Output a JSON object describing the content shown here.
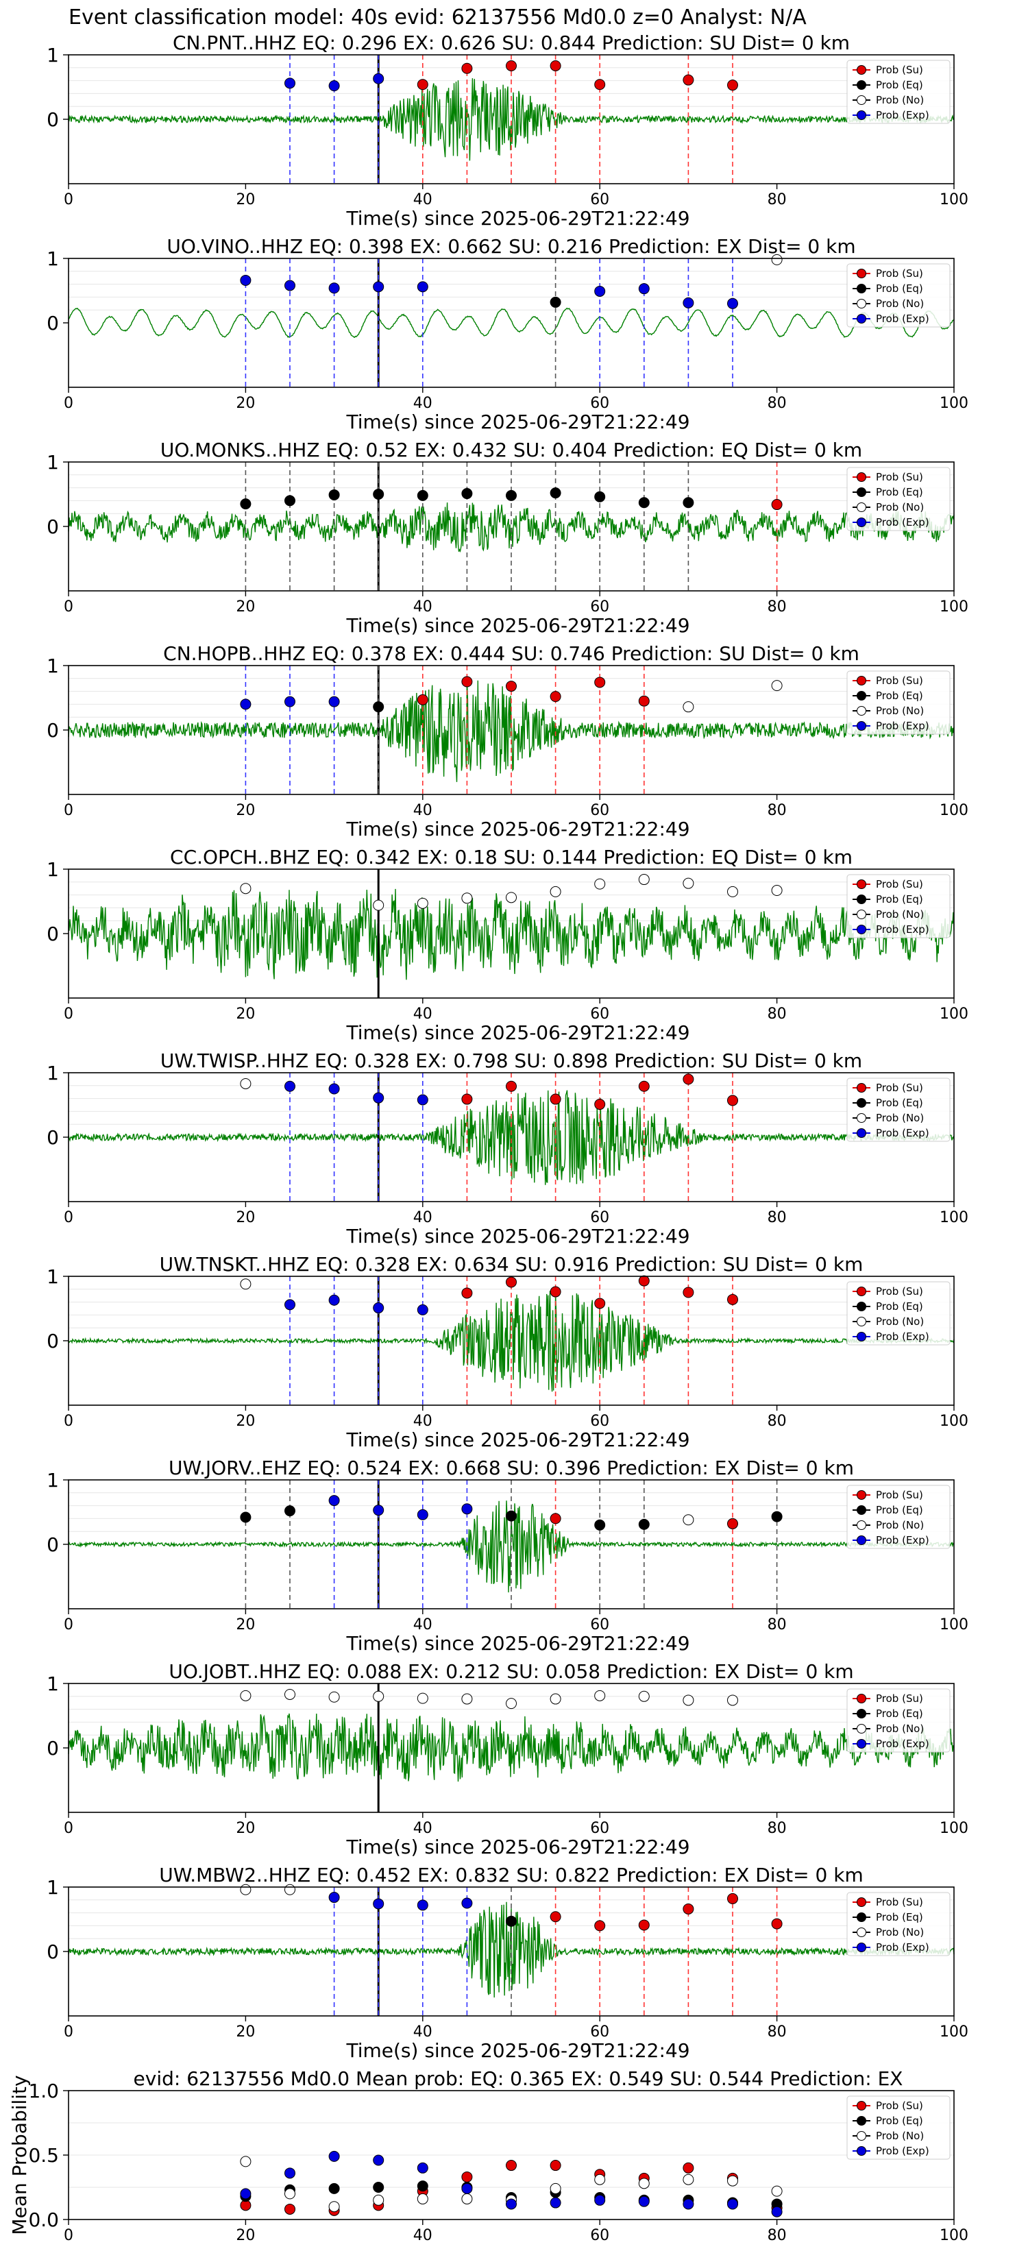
{
  "suptitle": "Event classification model: 40s evid: 62137556 Md0.0 z=0 Analyst: N/A",
  "colors": {
    "su": "#e00000",
    "eq": "#000000",
    "no": "#ffffff",
    "exp": "#0000dd",
    "waveform": "#008000",
    "vline_su": "#ff3333",
    "vline_eq": "#555555",
    "vline_exp": "#3333ff",
    "event_line": "#000000"
  },
  "legend_labels": [
    "Prob (Su)",
    "Prob (Eq)",
    "Prob (No)",
    "Prob (Exp)"
  ],
  "chart_data": [
    {
      "type": "scatter",
      "title": "CN.PNT..HHZ  EQ: 0.296  EX: 0.626  SU: 0.844   Prediction: SU    Dist= 0 km",
      "xlabel": "Time(s) since 2025-06-29T21:22:49",
      "xlim": [
        0,
        100
      ],
      "ylim": [
        -1,
        1
      ],
      "xticks": [
        0,
        20,
        40,
        60,
        80,
        100
      ],
      "yticks": [
        0,
        1
      ],
      "event_time": 35,
      "legend": "upper-right",
      "points": [
        {
          "x": 25,
          "y": 0.56,
          "class": "exp"
        },
        {
          "x": 30,
          "y": 0.52,
          "class": "exp"
        },
        {
          "x": 35,
          "y": 0.63,
          "class": "exp"
        },
        {
          "x": 40,
          "y": 0.54,
          "class": "su"
        },
        {
          "x": 45,
          "y": 0.79,
          "class": "su"
        },
        {
          "x": 50,
          "y": 0.83,
          "class": "su"
        },
        {
          "x": 55,
          "y": 0.83,
          "class": "su"
        },
        {
          "x": 60,
          "y": 0.54,
          "class": "su"
        },
        {
          "x": 70,
          "y": 0.61,
          "class": "su"
        },
        {
          "x": 75,
          "y": 0.53,
          "class": "su"
        }
      ],
      "waveform": {
        "style": "burst",
        "amp": 0.75,
        "start": 35,
        "end": 65,
        "noise": 0.05,
        "seed": 1
      }
    },
    {
      "type": "scatter",
      "title": "UO.VINO..HHZ   EQ: 0.398  EX: 0.662  SU: 0.216   Prediction: EX    Dist= 0 km",
      "xlabel": "Time(s) since 2025-06-29T21:22:49",
      "xlim": [
        0,
        100
      ],
      "ylim": [
        -1,
        1
      ],
      "xticks": [
        0,
        20,
        40,
        60,
        80,
        100
      ],
      "yticks": [
        0,
        1
      ],
      "event_time": 35,
      "legend": "upper-right",
      "points": [
        {
          "x": 20,
          "y": 0.66,
          "class": "exp"
        },
        {
          "x": 25,
          "y": 0.58,
          "class": "exp"
        },
        {
          "x": 30,
          "y": 0.54,
          "class": "exp"
        },
        {
          "x": 35,
          "y": 0.56,
          "class": "exp"
        },
        {
          "x": 40,
          "y": 0.56,
          "class": "exp"
        },
        {
          "x": 55,
          "y": 0.32,
          "class": "eq"
        },
        {
          "x": 60,
          "y": 0.49,
          "class": "exp"
        },
        {
          "x": 65,
          "y": 0.53,
          "class": "exp"
        },
        {
          "x": 70,
          "y": 0.31,
          "class": "exp"
        },
        {
          "x": 75,
          "y": 0.3,
          "class": "exp"
        },
        {
          "x": 80,
          "y": 0.98,
          "class": "no"
        }
      ],
      "waveform": {
        "style": "smooth",
        "amp": 0.22,
        "start": 0,
        "end": 100,
        "noise": 0.02,
        "seed": 2
      }
    },
    {
      "type": "scatter",
      "title": "UO.MONKS..HHZ   EQ: 0.52  EX: 0.432  SU: 0.404   Prediction: EQ    Dist= 0 km",
      "xlabel": "Time(s) since 2025-06-29T21:22:49",
      "xlim": [
        0,
        100
      ],
      "ylim": [
        -1,
        1
      ],
      "xticks": [
        0,
        20,
        40,
        60,
        80,
        100
      ],
      "yticks": [
        0,
        1
      ],
      "event_time": 35,
      "legend": "upper-right",
      "points": [
        {
          "x": 20,
          "y": 0.35,
          "class": "eq"
        },
        {
          "x": 25,
          "y": 0.4,
          "class": "eq"
        },
        {
          "x": 30,
          "y": 0.49,
          "class": "eq"
        },
        {
          "x": 35,
          "y": 0.5,
          "class": "eq"
        },
        {
          "x": 40,
          "y": 0.48,
          "class": "eq"
        },
        {
          "x": 45,
          "y": 0.51,
          "class": "eq"
        },
        {
          "x": 50,
          "y": 0.48,
          "class": "eq"
        },
        {
          "x": 55,
          "y": 0.52,
          "class": "eq"
        },
        {
          "x": 60,
          "y": 0.46,
          "class": "eq"
        },
        {
          "x": 65,
          "y": 0.37,
          "class": "eq"
        },
        {
          "x": 70,
          "y": 0.37,
          "class": "eq"
        },
        {
          "x": 80,
          "y": 0.34,
          "class": "su"
        }
      ],
      "waveform": {
        "style": "noisy",
        "amp": 0.2,
        "start": 35,
        "end": 65,
        "noise": 0.14,
        "seed": 3
      }
    },
    {
      "type": "scatter",
      "title": "CN.HOPB..HHZ   EQ: 0.378  EX: 0.444  SU: 0.746   Prediction: SU    Dist= 0 km",
      "xlabel": "Time(s) since 2025-06-29T21:22:49",
      "xlim": [
        0,
        100
      ],
      "ylim": [
        -1,
        1
      ],
      "xticks": [
        0,
        20,
        40,
        60,
        80,
        100
      ],
      "yticks": [
        0,
        1
      ],
      "event_time": 35,
      "legend": "upper-right",
      "points": [
        {
          "x": 20,
          "y": 0.4,
          "class": "exp"
        },
        {
          "x": 25,
          "y": 0.44,
          "class": "exp"
        },
        {
          "x": 30,
          "y": 0.44,
          "class": "exp"
        },
        {
          "x": 35,
          "y": 0.36,
          "class": "eq"
        },
        {
          "x": 40,
          "y": 0.47,
          "class": "su"
        },
        {
          "x": 45,
          "y": 0.75,
          "class": "su"
        },
        {
          "x": 50,
          "y": 0.68,
          "class": "su"
        },
        {
          "x": 55,
          "y": 0.52,
          "class": "su"
        },
        {
          "x": 60,
          "y": 0.74,
          "class": "su"
        },
        {
          "x": 65,
          "y": 0.45,
          "class": "su"
        },
        {
          "x": 70,
          "y": 0.36,
          "class": "no"
        },
        {
          "x": 80,
          "y": 0.69,
          "class": "no"
        }
      ],
      "waveform": {
        "style": "burst",
        "amp": 0.85,
        "start": 35,
        "end": 65,
        "noise": 0.12,
        "seed": 4
      }
    },
    {
      "type": "scatter",
      "title": "CC.OPCH..BHZ   EQ: 0.342  EX: 0.18  SU: 0.144   Prediction: EQ    Dist= 0 km",
      "xlabel": "Time(s) since 2025-06-29T21:22:49",
      "xlim": [
        0,
        100
      ],
      "ylim": [
        -1,
        1
      ],
      "xticks": [
        0,
        20,
        40,
        60,
        80,
        100
      ],
      "yticks": [
        0,
        1
      ],
      "event_time": 35,
      "legend": "upper-right",
      "points": [
        {
          "x": 20,
          "y": 0.7,
          "class": "no"
        },
        {
          "x": 35,
          "y": 0.44,
          "class": "no"
        },
        {
          "x": 40,
          "y": 0.47,
          "class": "no"
        },
        {
          "x": 45,
          "y": 0.55,
          "class": "no"
        },
        {
          "x": 50,
          "y": 0.56,
          "class": "no"
        },
        {
          "x": 55,
          "y": 0.65,
          "class": "no"
        },
        {
          "x": 60,
          "y": 0.77,
          "class": "no"
        },
        {
          "x": 65,
          "y": 0.84,
          "class": "no"
        },
        {
          "x": 70,
          "y": 0.78,
          "class": "no"
        },
        {
          "x": 75,
          "y": 0.65,
          "class": "no"
        },
        {
          "x": 80,
          "y": 0.67,
          "class": "no"
        }
      ],
      "waveform": {
        "style": "noisy",
        "amp": 0.35,
        "start": 0,
        "end": 100,
        "noise": 0.25,
        "seed": 5
      }
    },
    {
      "type": "scatter",
      "title": "UW.TWISP..HHZ   EQ: 0.328  EX: 0.798  SU: 0.898   Prediction: SU    Dist= 0 km",
      "xlabel": "Time(s) since 2025-06-29T21:22:49",
      "xlim": [
        0,
        100
      ],
      "ylim": [
        -1,
        1
      ],
      "xticks": [
        0,
        20,
        40,
        60,
        80,
        100
      ],
      "yticks": [
        0,
        1
      ],
      "event_time": 35,
      "legend": "upper-right",
      "points": [
        {
          "x": 20,
          "y": 0.83,
          "class": "no"
        },
        {
          "x": 25,
          "y": 0.79,
          "class": "exp"
        },
        {
          "x": 30,
          "y": 0.75,
          "class": "exp"
        },
        {
          "x": 35,
          "y": 0.61,
          "class": "exp"
        },
        {
          "x": 40,
          "y": 0.58,
          "class": "exp"
        },
        {
          "x": 45,
          "y": 0.59,
          "class": "su"
        },
        {
          "x": 50,
          "y": 0.79,
          "class": "su"
        },
        {
          "x": 55,
          "y": 0.59,
          "class": "su"
        },
        {
          "x": 60,
          "y": 0.51,
          "class": "su"
        },
        {
          "x": 65,
          "y": 0.79,
          "class": "su"
        },
        {
          "x": 70,
          "y": 0.9,
          "class": "su"
        },
        {
          "x": 75,
          "y": 0.57,
          "class": "su"
        }
      ],
      "waveform": {
        "style": "burst",
        "amp": 0.85,
        "start": 40,
        "end": 85,
        "noise": 0.05,
        "seed": 6
      }
    },
    {
      "type": "scatter",
      "title": "UW.TNSKT..HHZ   EQ: 0.328  EX: 0.634  SU: 0.916   Prediction: SU    Dist= 0 km",
      "xlabel": "Time(s) since 2025-06-29T21:22:49",
      "xlim": [
        0,
        100
      ],
      "ylim": [
        -1,
        1
      ],
      "xticks": [
        0,
        20,
        40,
        60,
        80,
        100
      ],
      "yticks": [
        0,
        1
      ],
      "event_time": 35,
      "legend": "upper-right",
      "points": [
        {
          "x": 20,
          "y": 0.88,
          "class": "no"
        },
        {
          "x": 25,
          "y": 0.56,
          "class": "exp"
        },
        {
          "x": 30,
          "y": 0.63,
          "class": "exp"
        },
        {
          "x": 35,
          "y": 0.51,
          "class": "exp"
        },
        {
          "x": 40,
          "y": 0.48,
          "class": "exp"
        },
        {
          "x": 45,
          "y": 0.74,
          "class": "su"
        },
        {
          "x": 50,
          "y": 0.91,
          "class": "su"
        },
        {
          "x": 55,
          "y": 0.76,
          "class": "su"
        },
        {
          "x": 60,
          "y": 0.58,
          "class": "su"
        },
        {
          "x": 65,
          "y": 0.93,
          "class": "su"
        },
        {
          "x": 70,
          "y": 0.75,
          "class": "su"
        },
        {
          "x": 75,
          "y": 0.64,
          "class": "su"
        }
      ],
      "waveform": {
        "style": "burst",
        "amp": 0.95,
        "start": 41,
        "end": 80,
        "noise": 0.03,
        "seed": 7
      }
    },
    {
      "type": "scatter",
      "title": "UW.JORV..EHZ   EQ: 0.524  EX: 0.668  SU: 0.396   Prediction: EX    Dist= 0 km",
      "xlabel": "Time(s) since 2025-06-29T21:22:49",
      "xlim": [
        0,
        100
      ],
      "ylim": [
        -1,
        1
      ],
      "xticks": [
        0,
        20,
        40,
        60,
        80,
        100
      ],
      "yticks": [
        0,
        1
      ],
      "event_time": 35,
      "legend": "upper-right",
      "points": [
        {
          "x": 20,
          "y": 0.42,
          "class": "eq"
        },
        {
          "x": 25,
          "y": 0.52,
          "class": "eq"
        },
        {
          "x": 30,
          "y": 0.68,
          "class": "exp"
        },
        {
          "x": 35,
          "y": 0.53,
          "class": "exp"
        },
        {
          "x": 40,
          "y": 0.46,
          "class": "exp"
        },
        {
          "x": 45,
          "y": 0.55,
          "class": "exp"
        },
        {
          "x": 50,
          "y": 0.44,
          "class": "eq"
        },
        {
          "x": 55,
          "y": 0.4,
          "class": "su"
        },
        {
          "x": 60,
          "y": 0.3,
          "class": "eq"
        },
        {
          "x": 65,
          "y": 0.31,
          "class": "eq"
        },
        {
          "x": 70,
          "y": 0.38,
          "class": "no"
        },
        {
          "x": 75,
          "y": 0.32,
          "class": "su"
        },
        {
          "x": 80,
          "y": 0.43,
          "class": "eq"
        }
      ],
      "waveform": {
        "style": "burst",
        "amp": 0.9,
        "start": 44,
        "end": 62,
        "noise": 0.03,
        "seed": 8
      }
    },
    {
      "type": "scatter",
      "title": "UO.JOBT..HHZ   EQ: 0.088  EX: 0.212  SU: 0.058   Prediction: EX    Dist= 0 km",
      "xlabel": "Time(s) since 2025-06-29T21:22:49",
      "xlim": [
        0,
        100
      ],
      "ylim": [
        -1,
        1
      ],
      "xticks": [
        0,
        20,
        40,
        60,
        80,
        100
      ],
      "yticks": [
        0,
        1
      ],
      "event_time": 35,
      "legend": "upper-right",
      "points": [
        {
          "x": 20,
          "y": 0.81,
          "class": "no"
        },
        {
          "x": 25,
          "y": 0.83,
          "class": "no"
        },
        {
          "x": 30,
          "y": 0.79,
          "class": "no"
        },
        {
          "x": 35,
          "y": 0.8,
          "class": "no"
        },
        {
          "x": 40,
          "y": 0.77,
          "class": "no"
        },
        {
          "x": 45,
          "y": 0.76,
          "class": "no"
        },
        {
          "x": 50,
          "y": 0.69,
          "class": "no"
        },
        {
          "x": 55,
          "y": 0.76,
          "class": "no"
        },
        {
          "x": 60,
          "y": 0.81,
          "class": "no"
        },
        {
          "x": 65,
          "y": 0.8,
          "class": "no"
        },
        {
          "x": 70,
          "y": 0.74,
          "class": "no"
        },
        {
          "x": 75,
          "y": 0.74,
          "class": "no"
        }
      ],
      "waveform": {
        "style": "noisy",
        "amp": 0.3,
        "start": 0,
        "end": 100,
        "noise": 0.18,
        "seed": 9
      }
    },
    {
      "type": "scatter",
      "title": "UW.MBW2..HHZ   EQ: 0.452  EX: 0.832  SU: 0.822   Prediction: EX    Dist= 0 km",
      "xlabel": "Time(s) since 2025-06-29T21:22:49",
      "xlim": [
        0,
        100
      ],
      "ylim": [
        -1,
        1
      ],
      "xticks": [
        0,
        20,
        40,
        60,
        80,
        100
      ],
      "yticks": [
        0,
        1
      ],
      "event_time": 35,
      "legend": "upper-right",
      "points": [
        {
          "x": 20,
          "y": 0.96,
          "class": "no"
        },
        {
          "x": 25,
          "y": 0.96,
          "class": "no"
        },
        {
          "x": 30,
          "y": 0.84,
          "class": "exp"
        },
        {
          "x": 35,
          "y": 0.74,
          "class": "exp"
        },
        {
          "x": 40,
          "y": 0.72,
          "class": "exp"
        },
        {
          "x": 45,
          "y": 0.75,
          "class": "exp"
        },
        {
          "x": 50,
          "y": 0.47,
          "class": "eq"
        },
        {
          "x": 55,
          "y": 0.54,
          "class": "su"
        },
        {
          "x": 60,
          "y": 0.4,
          "class": "su"
        },
        {
          "x": 65,
          "y": 0.41,
          "class": "su"
        },
        {
          "x": 70,
          "y": 0.66,
          "class": "su"
        },
        {
          "x": 75,
          "y": 0.82,
          "class": "su"
        },
        {
          "x": 80,
          "y": 0.43,
          "class": "su"
        }
      ],
      "waveform": {
        "style": "burst",
        "amp": 0.95,
        "start": 44,
        "end": 60,
        "noise": 0.05,
        "seed": 10
      }
    },
    {
      "type": "scatter",
      "title": "evid: 62137556  Md0.0   Mean prob:   EQ: 0.365  EX: 0.549  SU: 0.544   Prediction: EX",
      "xlabel": "",
      "ylabel": "Mean Probability",
      "xlim": [
        0,
        100
      ],
      "ylim": [
        0,
        1
      ],
      "xticks": [
        0,
        20,
        40,
        60,
        80,
        100
      ],
      "yticks": [
        0.0,
        0.5,
        1.0
      ],
      "legend": "upper-right",
      "series": [
        {
          "name": "Prob (Su)",
          "class": "su",
          "x": [
            20,
            25,
            30,
            35,
            40,
            45,
            50,
            55,
            60,
            65,
            70,
            75,
            80
          ],
          "y": [
            0.11,
            0.08,
            0.07,
            0.11,
            0.22,
            0.33,
            0.42,
            0.42,
            0.35,
            0.32,
            0.4,
            0.32,
            0.09
          ]
        },
        {
          "name": "Prob (Eq)",
          "class": "eq",
          "x": [
            20,
            25,
            30,
            35,
            40,
            45,
            50,
            55,
            60,
            65,
            70,
            75,
            80
          ],
          "y": [
            0.18,
            0.23,
            0.24,
            0.25,
            0.26,
            0.25,
            0.17,
            0.21,
            0.17,
            0.15,
            0.15,
            0.13,
            0.12
          ]
        },
        {
          "name": "Prob (No)",
          "class": "no",
          "x": [
            20,
            25,
            30,
            35,
            40,
            45,
            50,
            55,
            60,
            65,
            70,
            75,
            80
          ],
          "y": [
            0.45,
            0.2,
            0.1,
            0.15,
            0.16,
            0.16,
            0.15,
            0.24,
            0.31,
            0.28,
            0.31,
            0.3,
            0.22
          ]
        },
        {
          "name": "Prob (Exp)",
          "class": "exp",
          "x": [
            20,
            25,
            30,
            35,
            40,
            45,
            50,
            55,
            60,
            65,
            70,
            75,
            80
          ],
          "y": [
            0.2,
            0.36,
            0.49,
            0.46,
            0.4,
            0.24,
            0.12,
            0.13,
            0.15,
            0.14,
            0.12,
            0.12,
            0.06
          ]
        }
      ]
    }
  ]
}
